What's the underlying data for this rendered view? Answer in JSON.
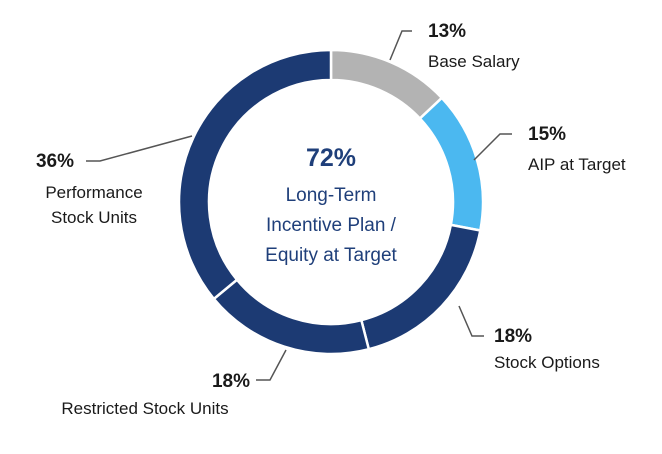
{
  "chart_data": {
    "type": "pie",
    "variant": "donut",
    "center": {
      "value_label": "72%",
      "lines": [
        "Long-Term",
        "Incentive Plan /",
        "Equity at Target"
      ],
      "color": "#1f3f7a"
    },
    "slices": [
      {
        "key": "base-salary",
        "label_lines": [
          "Base Salary"
        ],
        "value": 13,
        "value_label": "13%",
        "color": "#b3b3b3"
      },
      {
        "key": "aip-at-target",
        "label_lines": [
          "AIP at Target"
        ],
        "value": 15,
        "value_label": "15%",
        "color": "#4bb8f0"
      },
      {
        "key": "stock-options",
        "label_lines": [
          "Stock Options"
        ],
        "value": 18,
        "value_label": "18%",
        "color": "#1c3a73"
      },
      {
        "key": "restricted-stock-units",
        "label_lines": [
          "Restricted Stock Units"
        ],
        "value": 18,
        "value_label": "18%",
        "color": "#1c3a73"
      },
      {
        "key": "performance-stock-units",
        "label_lines": [
          "Performance",
          "Stock Units"
        ],
        "value": 36,
        "value_label": "36%",
        "color": "#1c3a73"
      }
    ],
    "start_angle_deg": 0,
    "direction": "clockwise",
    "legend": "none"
  }
}
